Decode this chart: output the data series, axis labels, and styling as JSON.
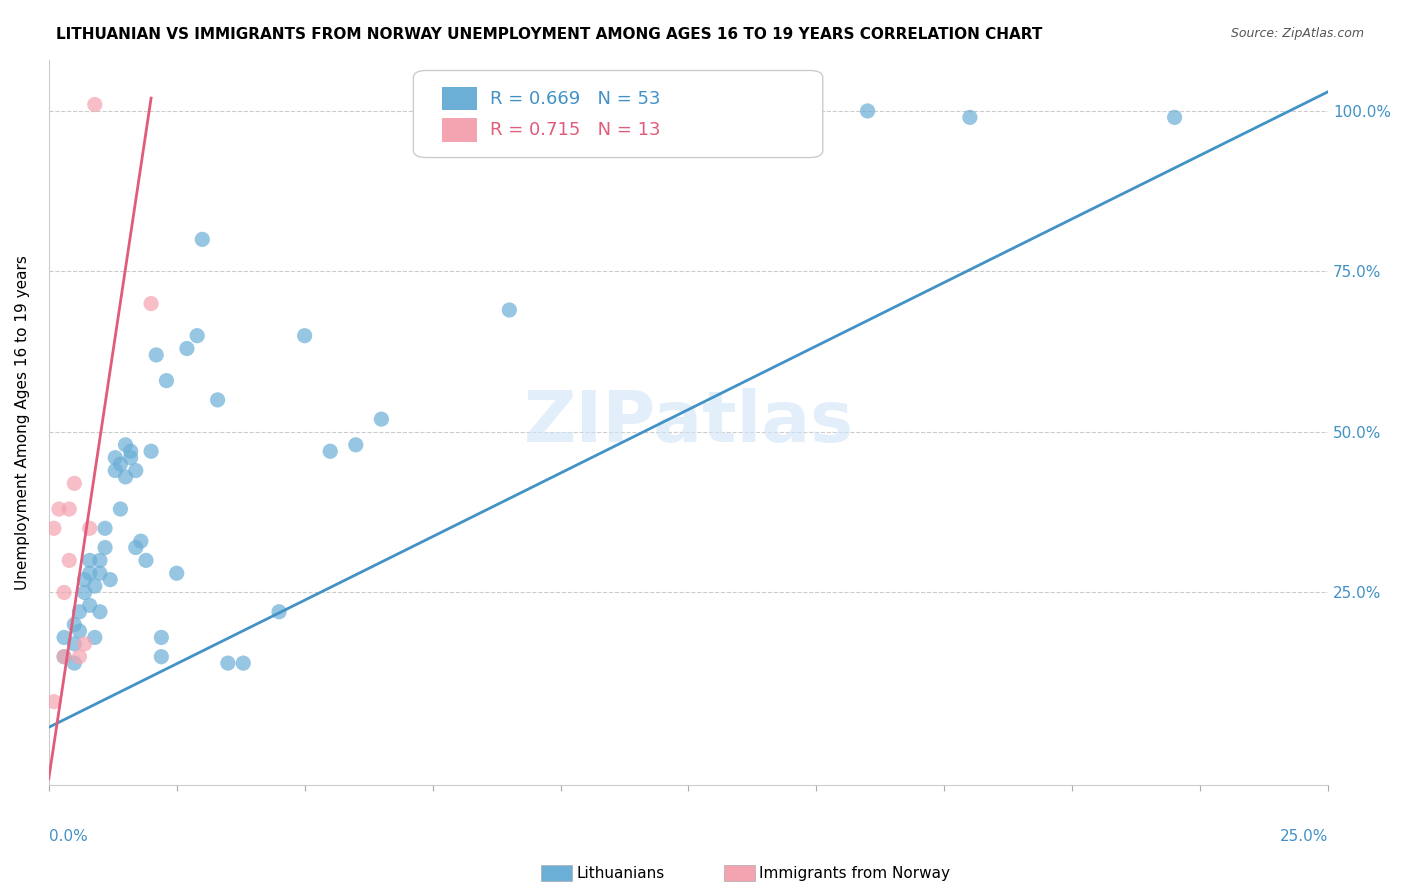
{
  "title": "LITHUANIAN VS IMMIGRANTS FROM NORWAY UNEMPLOYMENT AMONG AGES 16 TO 19 YEARS CORRELATION CHART",
  "source": "Source: ZipAtlas.com",
  "ylabel": "Unemployment Among Ages 16 to 19 years",
  "ytick_labels": [
    "100.0%",
    "75.0%",
    "50.0%",
    "25.0%"
  ],
  "ytick_values": [
    1.0,
    0.75,
    0.5,
    0.25
  ],
  "xlim": [
    0.0,
    0.25
  ],
  "ylim": [
    -0.05,
    1.08
  ],
  "blue_color": "#6baed6",
  "pink_color": "#f4a3b0",
  "blue_line_color": "#4292c6",
  "pink_line_color": "#e05c7a",
  "legend1_R": "0.669",
  "legend1_N": "53",
  "legend2_R": "0.715",
  "legend2_N": "13",
  "watermark": "ZIPatlas",
  "blue_scatter_x": [
    0.003,
    0.003,
    0.005,
    0.005,
    0.005,
    0.006,
    0.006,
    0.007,
    0.007,
    0.008,
    0.008,
    0.008,
    0.009,
    0.009,
    0.01,
    0.01,
    0.01,
    0.011,
    0.011,
    0.012,
    0.013,
    0.013,
    0.014,
    0.014,
    0.015,
    0.015,
    0.016,
    0.016,
    0.017,
    0.017,
    0.018,
    0.019,
    0.02,
    0.021,
    0.022,
    0.022,
    0.023,
    0.025,
    0.027,
    0.029,
    0.03,
    0.033,
    0.035,
    0.038,
    0.045,
    0.05,
    0.055,
    0.06,
    0.065,
    0.09,
    0.16,
    0.18,
    0.22
  ],
  "blue_scatter_y": [
    0.18,
    0.15,
    0.14,
    0.2,
    0.17,
    0.19,
    0.22,
    0.25,
    0.27,
    0.28,
    0.23,
    0.3,
    0.18,
    0.26,
    0.22,
    0.3,
    0.28,
    0.35,
    0.32,
    0.27,
    0.44,
    0.46,
    0.45,
    0.38,
    0.48,
    0.43,
    0.47,
    0.46,
    0.44,
    0.32,
    0.33,
    0.3,
    0.47,
    0.62,
    0.15,
    0.18,
    0.58,
    0.28,
    0.63,
    0.65,
    0.8,
    0.55,
    0.14,
    0.14,
    0.22,
    0.65,
    0.47,
    0.48,
    0.52,
    0.69,
    1.0,
    0.99,
    0.99
  ],
  "pink_scatter_x": [
    0.001,
    0.001,
    0.002,
    0.003,
    0.003,
    0.004,
    0.004,
    0.005,
    0.006,
    0.007,
    0.008,
    0.009,
    0.02
  ],
  "pink_scatter_y": [
    0.08,
    0.35,
    0.38,
    0.15,
    0.25,
    0.3,
    0.38,
    0.42,
    0.15,
    0.17,
    0.35,
    1.01,
    0.7
  ],
  "blue_line_x": [
    0.0,
    0.25
  ],
  "blue_line_y": [
    0.04,
    1.03
  ],
  "pink_line_x": [
    0.0,
    0.02
  ],
  "pink_line_y": [
    -0.04,
    1.02
  ],
  "xtick_positions": [
    0.0,
    0.025,
    0.05,
    0.075,
    0.1,
    0.125,
    0.15,
    0.175,
    0.2,
    0.225,
    0.25
  ]
}
